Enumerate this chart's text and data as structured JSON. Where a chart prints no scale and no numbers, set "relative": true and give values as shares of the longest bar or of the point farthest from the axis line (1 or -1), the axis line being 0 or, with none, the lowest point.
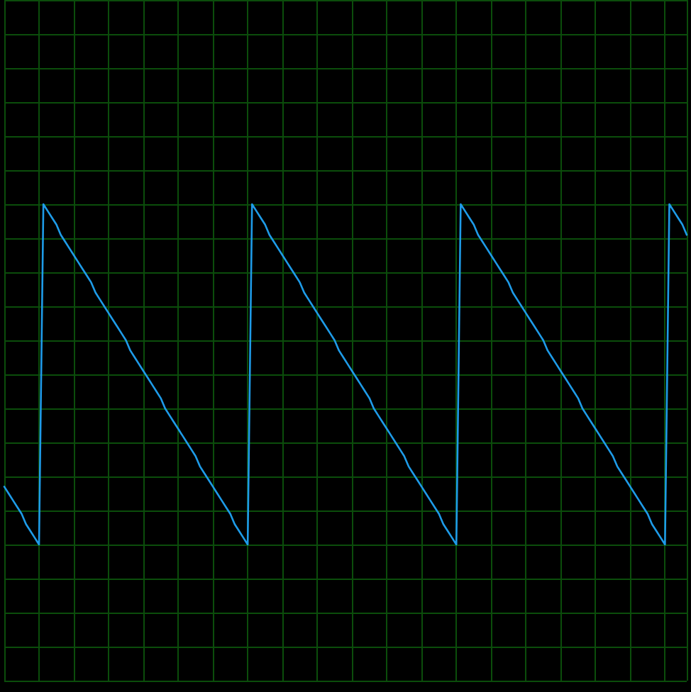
{
  "chart_data": {
    "type": "line",
    "relative": true,
    "grid": true,
    "marker": "none",
    "line_style": "solid",
    "categories": [
      null,
      null,
      null,
      null,
      null,
      null,
      null,
      null,
      null,
      null,
      null,
      null,
      null,
      null,
      null,
      null,
      null,
      null,
      null,
      null,
      null,
      null,
      null,
      null,
      null,
      null,
      null,
      null,
      null,
      null,
      null,
      null,
      null,
      null,
      null,
      null,
      null,
      null,
      null,
      null,
      null,
      null,
      null,
      null,
      null,
      null,
      null,
      null,
      null,
      null,
      null,
      null,
      null,
      null,
      null,
      null,
      null,
      null,
      null,
      null,
      null,
      null,
      null,
      null,
      null,
      null,
      null,
      null,
      null,
      null,
      null,
      null,
      null,
      null,
      null,
      null,
      null,
      null,
      null,
      null,
      null,
      null,
      null,
      null,
      null,
      null,
      null,
      null,
      null,
      null,
      null,
      null,
      null,
      null,
      null,
      null,
      null,
      null,
      null,
      null,
      null,
      null,
      null,
      null,
      null,
      null,
      null,
      null,
      null,
      null,
      null,
      null,
      null,
      null,
      null,
      null,
      null,
      null,
      null,
      null,
      null,
      null,
      null,
      null,
      null,
      null,
      null,
      null,
      null,
      null,
      null,
      null,
      null,
      null,
      null,
      null,
      null,
      null,
      null,
      null,
      null,
      null,
      null,
      null,
      null,
      null,
      null,
      null,
      null,
      null,
      null,
      null,
      null,
      null,
      null,
      null,
      null,
      null
    ],
    "series": [
      {
        "color": "#1e9be8",
        "values": [
          0.17,
          0.15,
          0.13,
          0.11,
          0.09,
          0.06,
          0.04,
          0.02,
          0,
          1,
          0.98,
          0.96,
          0.94,
          0.91,
          0.89,
          0.87,
          0.85,
          0.83,
          0.81,
          0.79,
          0.77,
          0.74,
          0.72,
          0.7,
          0.68,
          0.66,
          0.64,
          0.62,
          0.6,
          0.57,
          0.55,
          0.53,
          0.51,
          0.49,
          0.47,
          0.45,
          0.43,
          0.4,
          0.38,
          0.36,
          0.34,
          0.32,
          0.3,
          0.28,
          0.26,
          0.23,
          0.21,
          0.19,
          0.17,
          0.15,
          0.13,
          0.11,
          0.09,
          0.06,
          0.04,
          0.02,
          0,
          1,
          0.98,
          0.96,
          0.94,
          0.91,
          0.89,
          0.87,
          0.85,
          0.83,
          0.81,
          0.79,
          0.77,
          0.74,
          0.72,
          0.7,
          0.68,
          0.66,
          0.64,
          0.62,
          0.6,
          0.57,
          0.55,
          0.53,
          0.51,
          0.49,
          0.47,
          0.45,
          0.43,
          0.4,
          0.38,
          0.36,
          0.34,
          0.32,
          0.3,
          0.28,
          0.26,
          0.23,
          0.21,
          0.19,
          0.17,
          0.15,
          0.13,
          0.11,
          0.09,
          0.06,
          0.04,
          0.02,
          0,
          1,
          0.98,
          0.96,
          0.94,
          0.91,
          0.89,
          0.87,
          0.85,
          0.83,
          0.81,
          0.79,
          0.77,
          0.74,
          0.72,
          0.7,
          0.68,
          0.66,
          0.64,
          0.62,
          0.6,
          0.57,
          0.55,
          0.53,
          0.51,
          0.49,
          0.47,
          0.45,
          0.43,
          0.4,
          0.38,
          0.36,
          0.34,
          0.32,
          0.3,
          0.28,
          0.26,
          0.23,
          0.21,
          0.19,
          0.17,
          0.15,
          0.13,
          0.11,
          0.09,
          0.06,
          0.04,
          0.02,
          0,
          1,
          0.98,
          0.96,
          0.94,
          0.91
        ]
      }
    ]
  }
}
